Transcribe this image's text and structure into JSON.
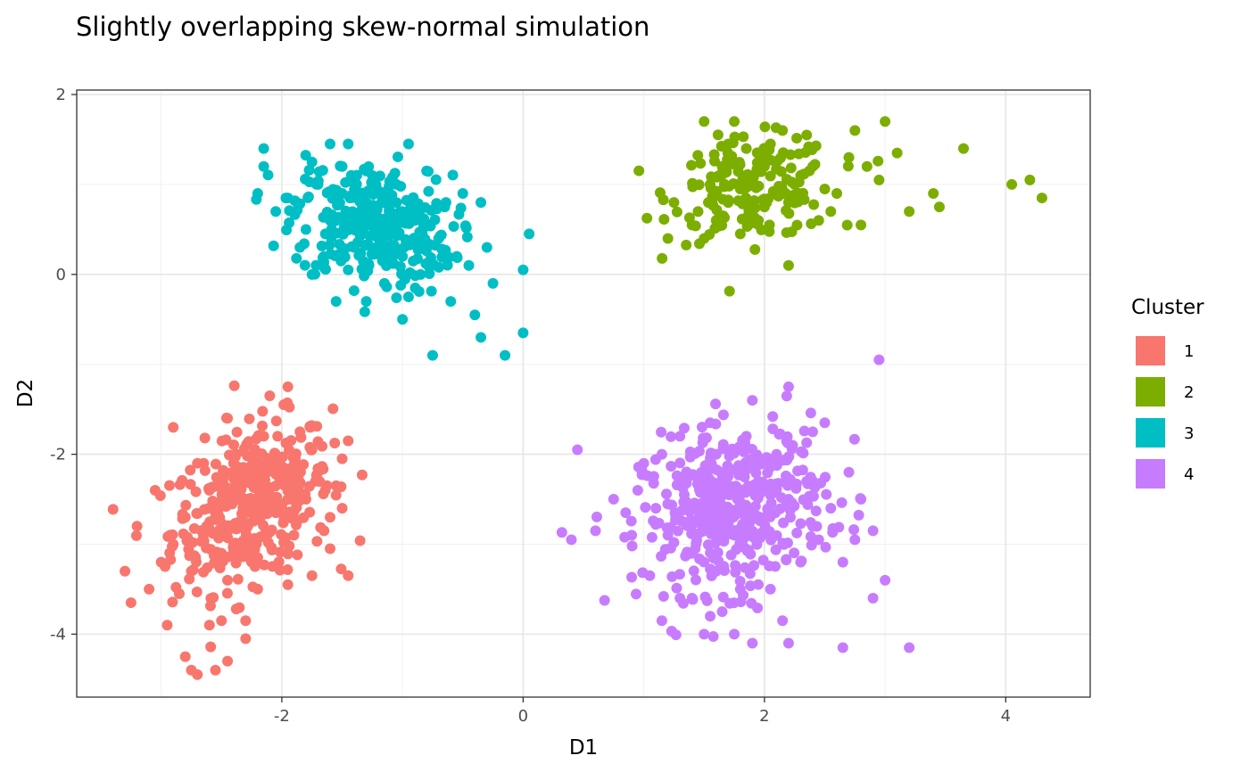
{
  "chart_data": {
    "type": "scatter",
    "title": "Slightly overlapping skew-normal simulation",
    "xlabel": "D1",
    "ylabel": "D2",
    "xlim": [
      -3.7,
      4.7
    ],
    "ylim": [
      -4.7,
      2.05
    ],
    "xticks": [
      -2,
      0,
      2,
      4
    ],
    "yticks": [
      -4,
      -2,
      0,
      2
    ],
    "x_tick_labels": [
      "-2",
      "0",
      "2",
      "4"
    ],
    "y_tick_labels": [
      "-4",
      "-2",
      "0",
      "2"
    ],
    "grid": true,
    "legend": {
      "title": "Cluster",
      "position": "right"
    },
    "series": [
      {
        "name": "1",
        "color": "#F8766D",
        "center": [
          -2.25,
          -2.55
        ],
        "points": [
          [
            -3.3,
            -3.3
          ],
          [
            -3.25,
            -3.65
          ],
          [
            -3.2,
            -2.8
          ],
          [
            -3.1,
            -3.5
          ],
          [
            -3.05,
            -2.4
          ],
          [
            -2.9,
            -1.7
          ],
          [
            -2.95,
            -3.9
          ],
          [
            -2.8,
            -4.25
          ],
          [
            -2.75,
            -4.4
          ],
          [
            -2.7,
            -4.45
          ],
          [
            -2.55,
            -4.4
          ],
          [
            -2.45,
            -4.3
          ],
          [
            -2.3,
            -4.05
          ],
          [
            -1.95,
            -3.45
          ],
          [
            -1.75,
            -3.35
          ],
          [
            -1.6,
            -3.05
          ],
          [
            -1.45,
            -3.35
          ],
          [
            -1.45,
            -1.85
          ],
          [
            -1.5,
            -2.6
          ],
          [
            -1.85,
            -1.75
          ],
          [
            -2.1,
            -1.35
          ],
          [
            -1.95,
            -1.25
          ],
          [
            -2.45,
            -1.6
          ],
          [
            -2.3,
            -3.85
          ],
          [
            -2.5,
            -3.85
          ],
          [
            -2.6,
            -3.9
          ],
          [
            -2.2,
            -3.5
          ],
          [
            -2.05,
            -2.0
          ],
          [
            -2.4,
            -2.1
          ],
          [
            -2.15,
            -1.8
          ],
          [
            -2.0,
            -2.3
          ],
          [
            -1.8,
            -2.5
          ],
          [
            -1.7,
            -2.2
          ],
          [
            -1.6,
            -2.7
          ],
          [
            -1.9,
            -2.9
          ],
          [
            -2.6,
            -2.4
          ],
          [
            -2.7,
            -2.1
          ],
          [
            -2.8,
            -2.7
          ],
          [
            -2.9,
            -3.0
          ],
          [
            -2.5,
            -3.1
          ],
          [
            -2.35,
            -2.75
          ],
          [
            -2.2,
            -2.3
          ],
          [
            -2.05,
            -2.65
          ],
          [
            -1.95,
            -3.1
          ],
          [
            -2.25,
            -3.2
          ],
          [
            -2.45,
            -3.4
          ],
          [
            -2.75,
            -3.3
          ],
          [
            -1.75,
            -1.95
          ],
          [
            -2.85,
            -3.55
          ],
          [
            -3.0,
            -3.2
          ],
          [
            -1.55,
            -2.35
          ],
          [
            -1.5,
            -2.05
          ],
          [
            -2.65,
            -2.9
          ],
          [
            -2.3,
            -2.55
          ],
          [
            -2.1,
            -2.1
          ],
          [
            -1.85,
            -2.2
          ],
          [
            -2.4,
            -3.0
          ],
          [
            -2.55,
            -2.7
          ],
          [
            -2.15,
            -2.9
          ],
          [
            -1.65,
            -2.85
          ]
        ]
      },
      {
        "name": "2",
        "color": "#7CAE00",
        "center": [
          1.9,
          0.95
        ],
        "points": [
          [
            1.2,
            0.4
          ],
          [
            1.5,
            0.4
          ],
          [
            1.5,
            1.7
          ],
          [
            1.75,
            1.7
          ],
          [
            2.15,
            1.6
          ],
          [
            2.75,
            1.6
          ],
          [
            3.0,
            1.7
          ],
          [
            2.2,
            0.1
          ],
          [
            2.8,
            0.55
          ],
          [
            3.2,
            0.7
          ],
          [
            3.4,
            0.9
          ],
          [
            3.45,
            0.75
          ],
          [
            3.65,
            1.4
          ],
          [
            4.05,
            1.0
          ],
          [
            4.2,
            1.05
          ],
          [
            4.3,
            0.85
          ],
          [
            1.25,
            0.8
          ],
          [
            1.4,
            0.55
          ],
          [
            1.6,
            0.6
          ],
          [
            1.7,
            0.8
          ],
          [
            1.8,
            0.95
          ],
          [
            1.9,
            1.1
          ],
          [
            2.0,
            1.2
          ],
          [
            2.1,
            0.9
          ],
          [
            2.2,
            0.8
          ],
          [
            2.3,
            1.1
          ],
          [
            2.4,
            1.2
          ],
          [
            2.5,
            0.95
          ],
          [
            2.6,
            0.9
          ],
          [
            2.7,
            1.3
          ],
          [
            2.85,
            1.2
          ],
          [
            2.95,
            1.05
          ],
          [
            3.1,
            1.35
          ],
          [
            1.65,
            1.2
          ],
          [
            1.55,
            1.0
          ],
          [
            1.85,
            1.4
          ],
          [
            2.05,
            1.45
          ],
          [
            2.35,
            1.55
          ],
          [
            1.95,
            0.6
          ],
          [
            1.8,
            0.45
          ],
          [
            2.55,
            0.7
          ],
          [
            2.45,
            0.6
          ],
          [
            1.7,
            1.45
          ],
          [
            2.25,
            1.0
          ],
          [
            1.45,
            0.7
          ],
          [
            2.0,
            0.75
          ]
        ]
      },
      {
        "name": "3",
        "color": "#00BFC4",
        "center": [
          -1.25,
          0.55
        ],
        "points": [
          [
            -2.2,
            0.9
          ],
          [
            -2.15,
            1.4
          ],
          [
            -2.15,
            1.2
          ],
          [
            -1.6,
            1.45
          ],
          [
            -1.45,
            1.45
          ],
          [
            -0.95,
            1.45
          ],
          [
            -0.8,
            1.15
          ],
          [
            -0.5,
            0.9
          ],
          [
            -0.35,
            0.8
          ],
          [
            0.05,
            0.45
          ],
          [
            0.0,
            0.05
          ],
          [
            0.0,
            -0.65
          ],
          [
            -0.15,
            -0.9
          ],
          [
            -0.35,
            -0.7
          ],
          [
            -0.4,
            -0.45
          ],
          [
            -0.75,
            -0.9
          ],
          [
            -1.0,
            -0.5
          ],
          [
            -1.3,
            -0.3
          ],
          [
            -1.55,
            -0.3
          ],
          [
            -1.75,
            0.0
          ],
          [
            -1.85,
            0.3
          ],
          [
            -2.05,
            0.7
          ],
          [
            -1.95,
            0.85
          ],
          [
            -1.7,
            1.0
          ],
          [
            -1.5,
            0.9
          ],
          [
            -1.3,
            0.8
          ],
          [
            -1.1,
            0.7
          ],
          [
            -0.9,
            0.6
          ],
          [
            -0.7,
            0.4
          ],
          [
            -0.55,
            0.2
          ],
          [
            -0.45,
            0.1
          ],
          [
            -1.4,
            0.3
          ],
          [
            -1.2,
            0.4
          ],
          [
            -1.0,
            0.2
          ],
          [
            -0.85,
            0.0
          ],
          [
            -1.15,
            -0.1
          ],
          [
            -1.6,
            0.6
          ],
          [
            -1.8,
            0.5
          ],
          [
            -1.65,
            0.2
          ],
          [
            -1.25,
            1.1
          ],
          [
            -1.05,
            1.0
          ],
          [
            -0.65,
            0.75
          ],
          [
            -1.35,
            0.55
          ],
          [
            -1.45,
            0.05
          ],
          [
            -0.95,
            -0.25
          ],
          [
            -0.6,
            -0.3
          ],
          [
            -0.3,
            0.3
          ],
          [
            -0.25,
            -0.1
          ],
          [
            -1.5,
            1.2
          ],
          [
            -1.75,
            1.25
          ]
        ]
      },
      {
        "name": "4",
        "color": "#C77CFF",
        "center": [
          1.75,
          -2.6
        ],
        "points": [
          [
            0.45,
            -1.95
          ],
          [
            0.4,
            -2.95
          ],
          [
            0.6,
            -2.85
          ],
          [
            0.75,
            -2.5
          ],
          [
            0.9,
            -2.9
          ],
          [
            1.05,
            -3.35
          ],
          [
            1.15,
            -3.85
          ],
          [
            1.3,
            -3.6
          ],
          [
            1.5,
            -4.0
          ],
          [
            1.75,
            -4.0
          ],
          [
            1.9,
            -4.1
          ],
          [
            2.2,
            -4.1
          ],
          [
            2.65,
            -4.15
          ],
          [
            3.2,
            -4.15
          ],
          [
            2.9,
            -3.6
          ],
          [
            3.0,
            -3.4
          ],
          [
            2.9,
            -2.85
          ],
          [
            2.75,
            -2.95
          ],
          [
            2.7,
            -2.2
          ],
          [
            2.5,
            -1.65
          ],
          [
            2.95,
            -0.95
          ],
          [
            2.2,
            -1.25
          ],
          [
            1.9,
            -1.4
          ],
          [
            1.55,
            -1.65
          ],
          [
            1.3,
            -1.8
          ],
          [
            1.0,
            -2.1
          ],
          [
            0.95,
            -2.4
          ],
          [
            1.1,
            -2.6
          ],
          [
            1.2,
            -2.9
          ],
          [
            1.4,
            -3.1
          ],
          [
            1.6,
            -3.3
          ],
          [
            1.8,
            -3.5
          ],
          [
            2.05,
            -3.5
          ],
          [
            2.3,
            -3.2
          ],
          [
            2.45,
            -2.95
          ],
          [
            2.55,
            -2.6
          ],
          [
            2.35,
            -2.3
          ],
          [
            2.1,
            -2.0
          ],
          [
            1.85,
            -1.8
          ],
          [
            1.6,
            -2.0
          ],
          [
            1.45,
            -2.3
          ],
          [
            1.35,
            -2.6
          ],
          [
            1.55,
            -2.8
          ],
          [
            1.75,
            -2.9
          ],
          [
            2.0,
            -2.7
          ],
          [
            2.2,
            -2.5
          ],
          [
            1.95,
            -2.3
          ],
          [
            1.7,
            -2.4
          ],
          [
            2.4,
            -1.75
          ],
          [
            1.15,
            -2.0
          ],
          [
            2.65,
            -3.2
          ],
          [
            1.4,
            -3.6
          ],
          [
            2.15,
            -3.85
          ],
          [
            1.65,
            -3.75
          ],
          [
            2.8,
            -2.5
          ],
          [
            0.85,
            -2.65
          ]
        ]
      }
    ]
  }
}
